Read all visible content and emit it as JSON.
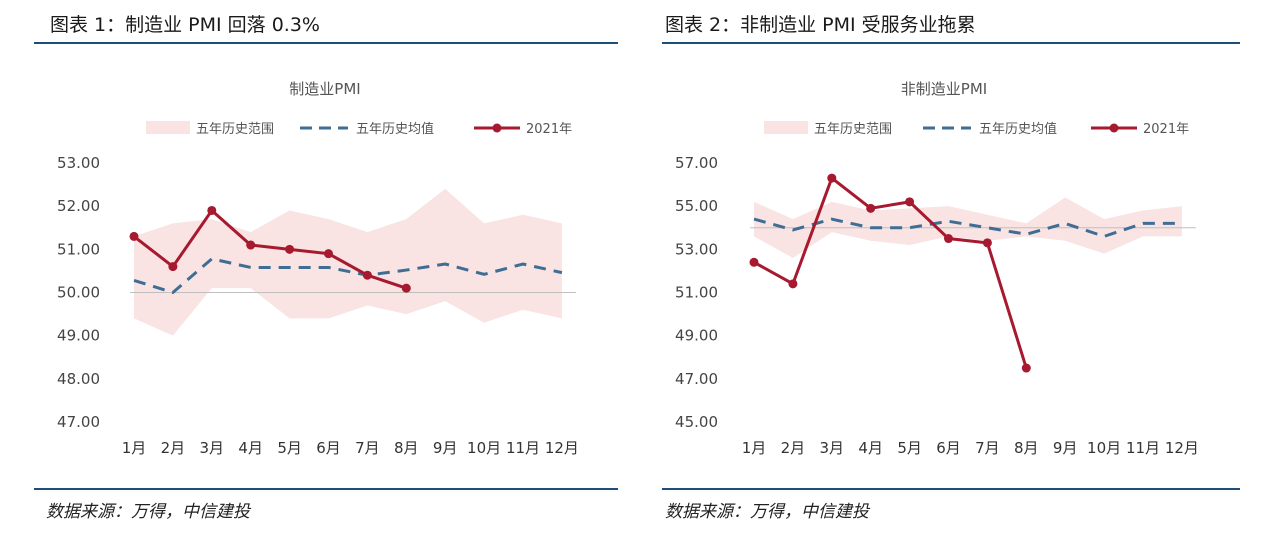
{
  "colors": {
    "band": "#f9e3e3",
    "avg": "#3f6d94",
    "current": "#a6192e",
    "rule": "#1f4e79",
    "axis": "#bfbfbf"
  },
  "panels": [
    {
      "fig_title": "图表 1：制造业 PMI 回落 0.3%",
      "source": "数据来源：万得，中信建投",
      "chart_data": {
        "type": "line",
        "title": "制造业PMI",
        "legend_position": "top",
        "legend": [
          "五年历史范围",
          "五年历史均值",
          "2021年"
        ],
        "categories": [
          "1月",
          "2月",
          "3月",
          "4月",
          "5月",
          "6月",
          "7月",
          "8月",
          "9月",
          "10月",
          "11月",
          "12月"
        ],
        "ylim": [
          47,
          53
        ],
        "yticks": [
          "53.00",
          "52.00",
          "51.00",
          "50.00",
          "49.00",
          "48.00",
          "47.00"
        ],
        "reference_line": 50,
        "series": [
          {
            "name": "五年历史范围",
            "kind": "band",
            "low": [
              49.4,
              49.0,
              50.1,
              50.1,
              49.4,
              49.4,
              49.7,
              49.5,
              49.8,
              49.3,
              49.6,
              49.4
            ],
            "high": [
              51.3,
              51.6,
              51.7,
              51.4,
              51.9,
              51.7,
              51.4,
              51.7,
              52.4,
              51.6,
              51.8,
              51.6
            ]
          },
          {
            "name": "五年历史均值",
            "kind": "dashed",
            "values": [
              50.28,
              50.0,
              50.78,
              50.58,
              50.58,
              50.58,
              50.4,
              50.52,
              50.66,
              50.42,
              50.66,
              50.46
            ]
          },
          {
            "name": "2021年",
            "kind": "line",
            "values": [
              51.3,
              50.6,
              51.9,
              51.1,
              51.0,
              50.9,
              50.4,
              50.1,
              null,
              null,
              null,
              null
            ]
          }
        ]
      }
    },
    {
      "fig_title": "图表 2：非制造业 PMI 受服务业拖累",
      "source": "数据来源：万得，中信建投",
      "chart_data": {
        "type": "line",
        "title": "非制造业PMI",
        "legend_position": "top",
        "legend": [
          "五年历史范围",
          "五年历史均值",
          "2021年"
        ],
        "categories": [
          "1月",
          "2月",
          "3月",
          "4月",
          "5月",
          "6月",
          "7月",
          "8月",
          "9月",
          "10月",
          "11月",
          "12月"
        ],
        "ylim": [
          45,
          57
        ],
        "yticks": [
          "57.00",
          "55.00",
          "53.00",
          "51.00",
          "49.00",
          "47.00",
          "45.00"
        ],
        "reference_line": 54,
        "series": [
          {
            "name": "五年历史范围",
            "kind": "band",
            "low": [
              53.6,
              52.6,
              53.8,
              53.4,
              53.2,
              53.6,
              53.4,
              53.6,
              53.4,
              52.8,
              53.6,
              53.6
            ],
            "high": [
              55.2,
              54.4,
              55.2,
              54.8,
              54.9,
              55.0,
              54.6,
              54.2,
              55.4,
              54.4,
              54.8,
              55.0
            ]
          },
          {
            "name": "五年历史均值",
            "kind": "dashed",
            "values": [
              54.4,
              53.9,
              54.4,
              54.0,
              54.0,
              54.3,
              54.0,
              53.7,
              54.2,
              53.6,
              54.2,
              54.2
            ]
          },
          {
            "name": "2021年",
            "kind": "line",
            "values": [
              52.4,
              51.4,
              56.3,
              54.9,
              55.2,
              53.5,
              53.3,
              47.5,
              null,
              null,
              null,
              null
            ]
          }
        ]
      }
    }
  ]
}
